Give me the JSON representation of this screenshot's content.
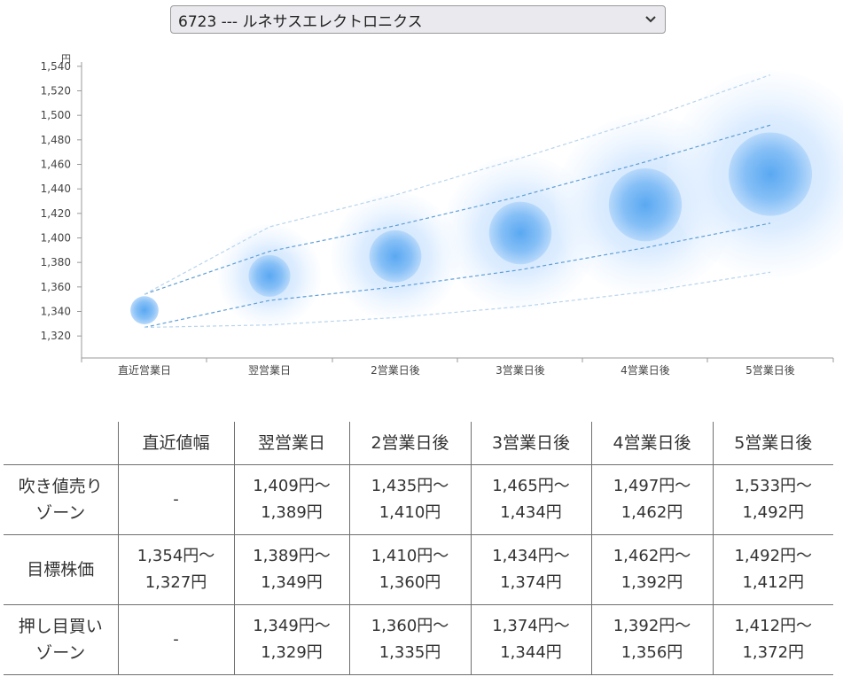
{
  "selector": {
    "value": "6723 --- ルネサスエレクトロニクス"
  },
  "chart_data": {
    "type": "scatter",
    "y_unit": "円",
    "categories": [
      "直近営業日",
      "翌営業日",
      "2営業日後",
      "3営業日後",
      "4営業日後",
      "5営業日後"
    ],
    "ylim": [
      1310,
      1550
    ],
    "yticks": [
      1320,
      1340,
      1360,
      1380,
      1400,
      1420,
      1440,
      1460,
      1480,
      1500,
      1520,
      1540
    ],
    "ytick_labels": [
      "1,320",
      "1,340",
      "1,360",
      "1,380",
      "1,400",
      "1,420",
      "1,440",
      "1,460",
      "1,480",
      "1,500",
      "1,520",
      "1,540"
    ],
    "center_values": [
      1341,
      1369,
      1385,
      1404,
      1427,
      1452
    ],
    "inner_band": {
      "upper": [
        1354,
        1389,
        1410,
        1434,
        1462,
        1492
      ],
      "lower": [
        1327,
        1349,
        1360,
        1374,
        1392,
        1412
      ]
    },
    "outer_band": {
      "upper": [
        1354,
        1409,
        1435,
        1465,
        1497,
        1533
      ],
      "lower": [
        1327,
        1329,
        1335,
        1344,
        1356,
        1372
      ]
    },
    "grid": false,
    "colors": {
      "core": "#4a9ff0",
      "halo": "#cfe6ff",
      "inner_line": "#5f9fd6",
      "outer_line": "#b7d4ee",
      "axis": "#999999"
    }
  },
  "table": {
    "headers": [
      "",
      "直近値幅",
      "翌営業日",
      "2営業日後",
      "3営業日後",
      "4営業日後",
      "5営業日後"
    ],
    "rows": [
      {
        "label1": "吹き値売り",
        "label2": "ゾーン",
        "cells": [
          {
            "l1": "-",
            "l2": ""
          },
          {
            "l1": "1,409円～",
            "l2": "1,389円"
          },
          {
            "l1": "1,435円～",
            "l2": "1,410円"
          },
          {
            "l1": "1,465円～",
            "l2": "1,434円"
          },
          {
            "l1": "1,497円～",
            "l2": "1,462円"
          },
          {
            "l1": "1,533円～",
            "l2": "1,492円"
          }
        ]
      },
      {
        "label1": "目標株価",
        "label2": "",
        "cells": [
          {
            "l1": "1,354円～",
            "l2": "1,327円"
          },
          {
            "l1": "1,389円～",
            "l2": "1,349円"
          },
          {
            "l1": "1,410円～",
            "l2": "1,360円"
          },
          {
            "l1": "1,434円～",
            "l2": "1,374円"
          },
          {
            "l1": "1,462円～",
            "l2": "1,392円"
          },
          {
            "l1": "1,492円～",
            "l2": "1,412円"
          }
        ]
      },
      {
        "label1": "押し目買い",
        "label2": "ゾーン",
        "cells": [
          {
            "l1": "-",
            "l2": ""
          },
          {
            "l1": "1,349円～",
            "l2": "1,329円"
          },
          {
            "l1": "1,360円～",
            "l2": "1,335円"
          },
          {
            "l1": "1,374円～",
            "l2": "1,344円"
          },
          {
            "l1": "1,392円～",
            "l2": "1,356円"
          },
          {
            "l1": "1,412円～",
            "l2": "1,372円"
          }
        ]
      }
    ]
  }
}
